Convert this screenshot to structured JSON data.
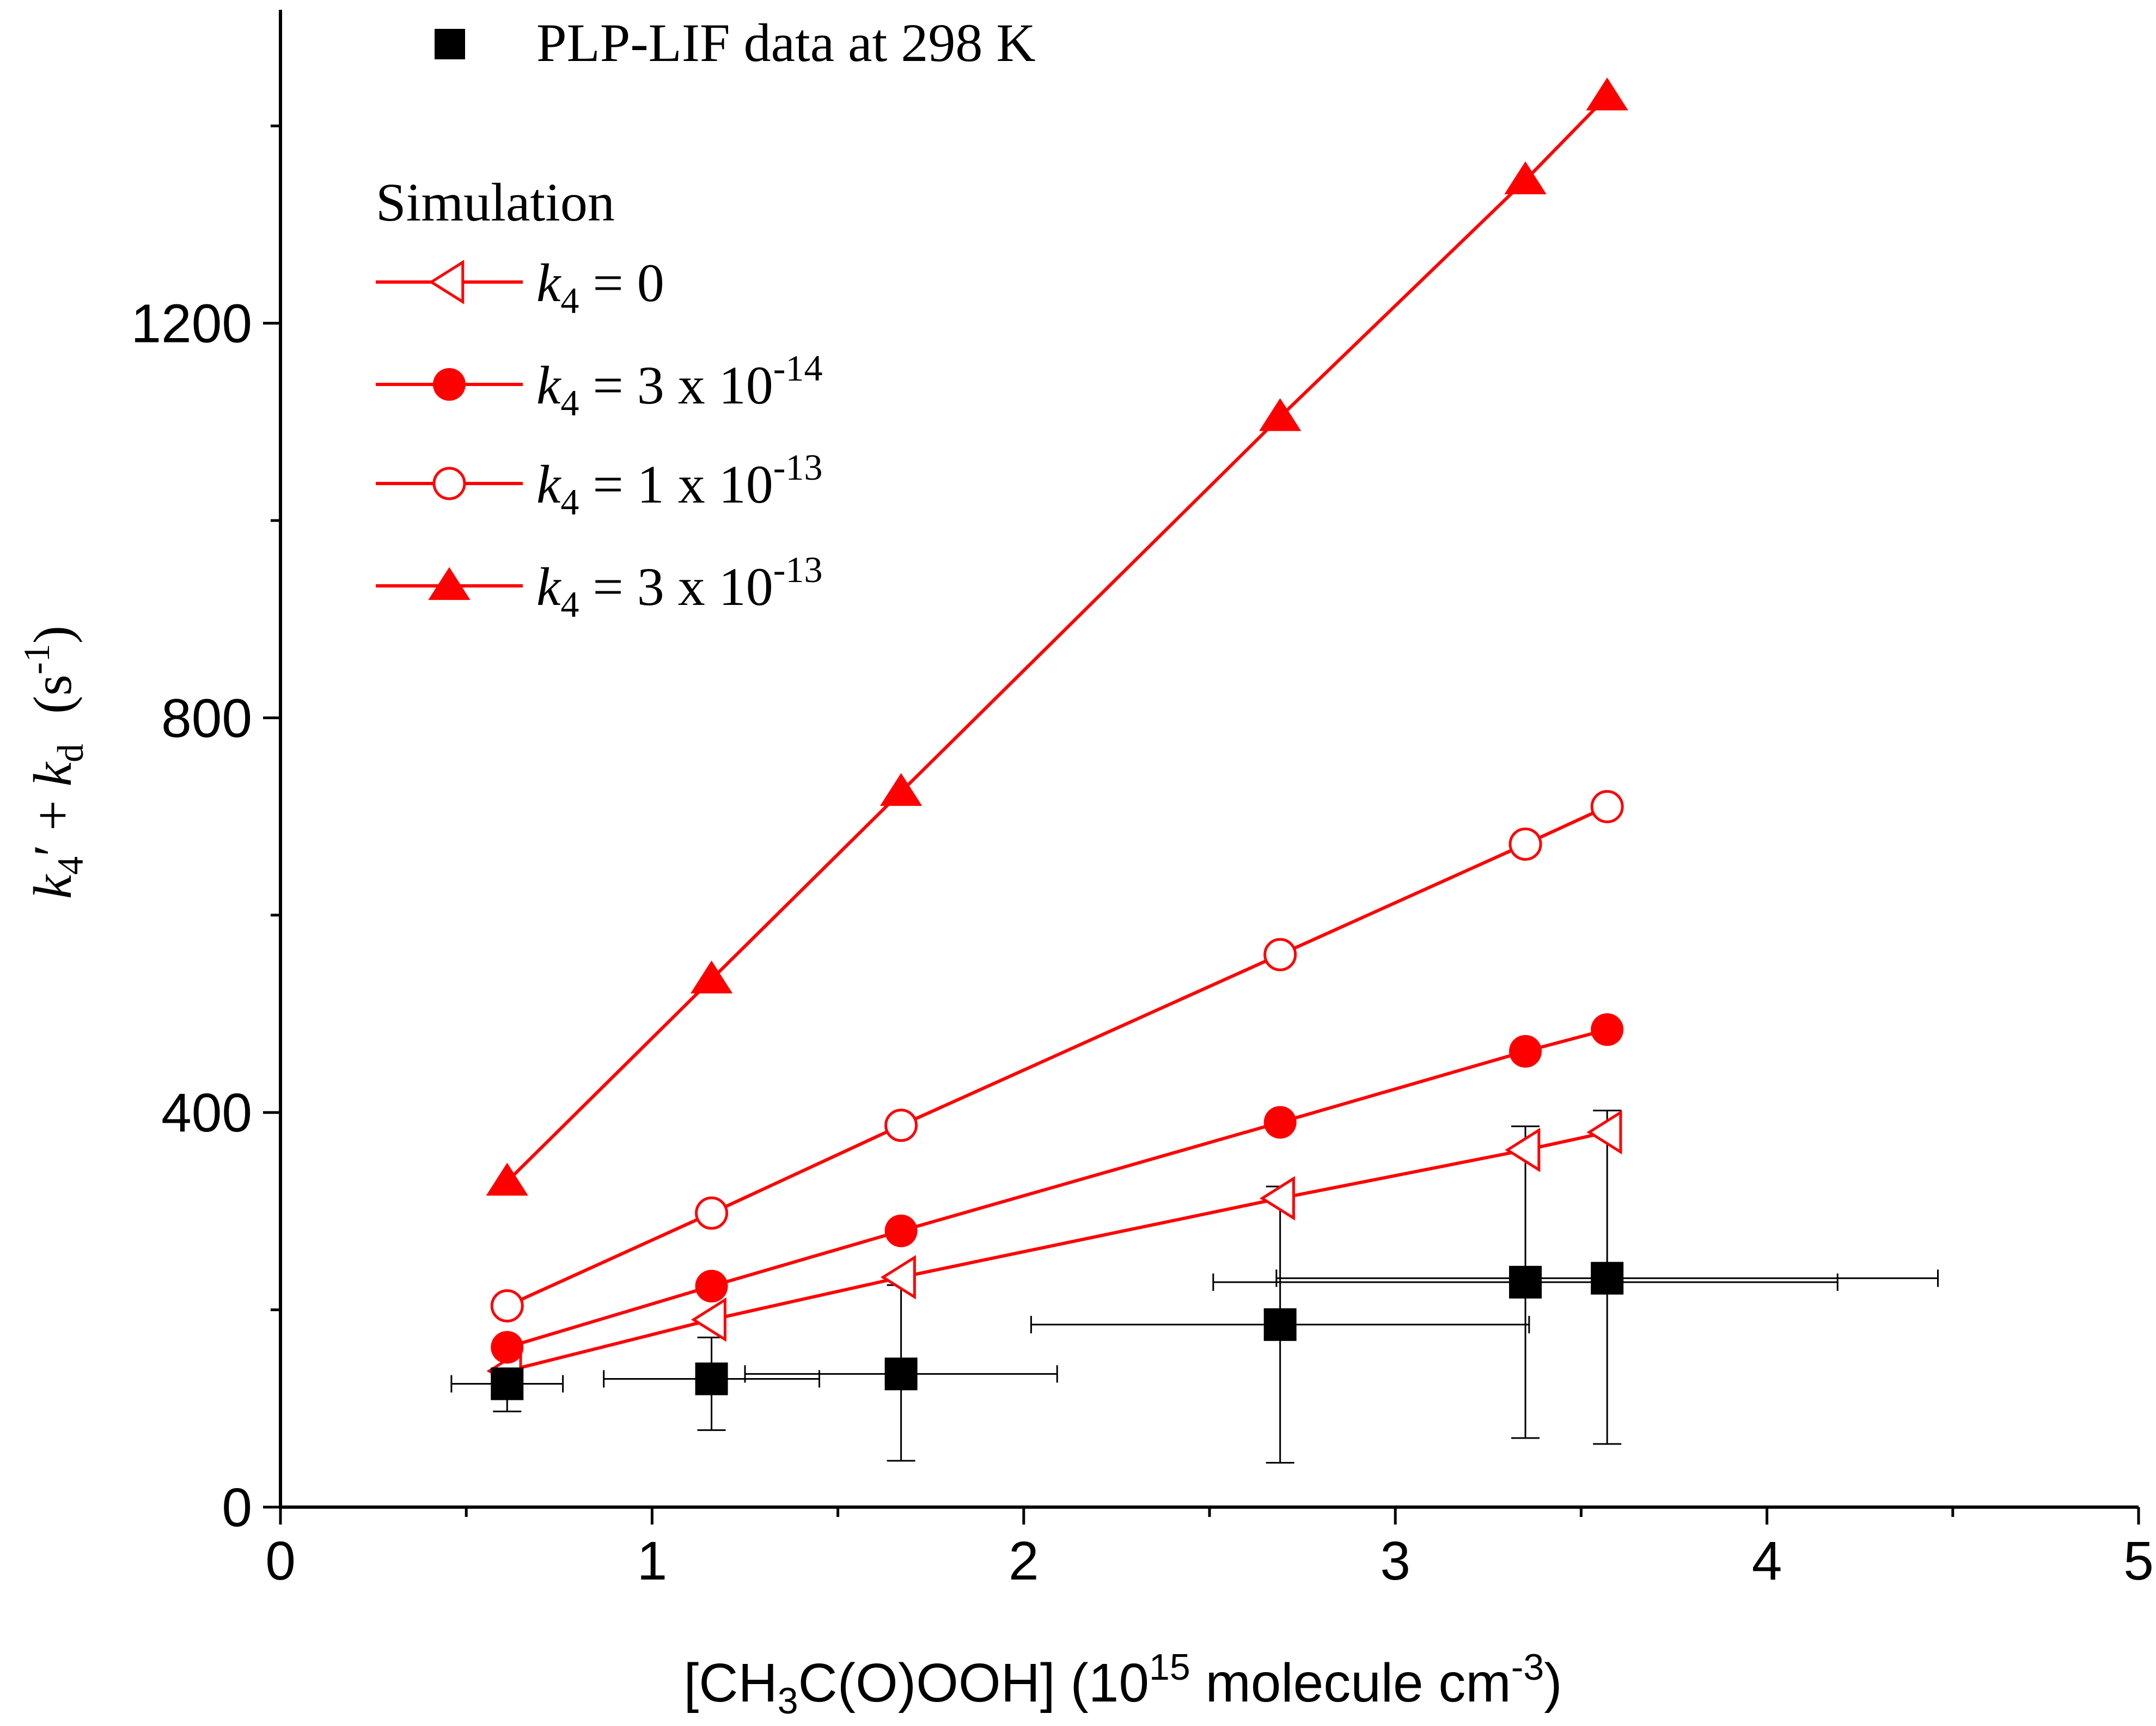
{
  "chart_data": {
    "type": "scatter",
    "x_title": {
      "pre": "[CH",
      "s1": "3",
      "mid": "C(O)OOH] (10",
      "s2": "15",
      "post": " molecule cm",
      "s3": "-3",
      "end": ")"
    },
    "y_title": {
      "k": "k",
      "s1": "4",
      "prime": "′ + ",
      "k2": "k",
      "s2": "d",
      "unit": "(s",
      "s3": "-1",
      "end": ")"
    },
    "xlim": [
      0,
      5
    ],
    "ylim": [
      0,
      1500
    ],
    "x_ticks": [
      0,
      1,
      2,
      3,
      4,
      5
    ],
    "y_ticks": [
      0,
      400,
      800,
      1200
    ],
    "legend_placement": "top-left",
    "legend": {
      "data_label": "PLP-LIF data at 298 K",
      "simulation_title": "Simulation",
      "k_symbol": "k",
      "k_sub": "4",
      "entries": [
        "= 0",
        "= 3 x 10",
        "= 1 x 10",
        "= 3 x 10"
      ],
      "exponents": [
        "",
        "-14",
        "-13",
        "-13"
      ]
    },
    "colors": {
      "simulation": "#ff0000",
      "data": "#000000"
    },
    "data_series": {
      "name": "PLP-LIF data at 298 K",
      "marker": "filled-square",
      "x": [
        0.61,
        1.16,
        1.67,
        2.69,
        3.35,
        3.57
      ],
      "y": [
        125,
        130,
        135,
        185,
        228,
        232
      ],
      "x_err": [
        0.15,
        0.29,
        0.42,
        0.67,
        0.84,
        0.89
      ],
      "y_err_upper": [
        8,
        42,
        90,
        140,
        158,
        170
      ],
      "y_err_lower": [
        28,
        52,
        88,
        140,
        158,
        168
      ]
    },
    "series": [
      {
        "name": "k4 = 0",
        "marker": "open-left-triangle",
        "x": [
          0.61,
          1.16,
          1.67,
          2.69,
          3.35,
          3.57
        ],
        "y": [
          138,
          190,
          233,
          313,
          362,
          380
        ]
      },
      {
        "name": "k4 = 3 x 10-14",
        "marker": "filled-circle",
        "x": [
          0.61,
          1.16,
          1.67,
          2.69,
          3.35,
          3.57
        ],
        "y": [
          162,
          224,
          280,
          390,
          462,
          484
        ]
      },
      {
        "name": "k4 = 1 x 10-13",
        "marker": "open-circle",
        "x": [
          0.61,
          1.16,
          1.67,
          2.69,
          3.35,
          3.57
        ],
        "y": [
          204,
          298,
          387,
          560,
          672,
          710
        ]
      },
      {
        "name": "k4 = 3 x 10-13",
        "marker": "filled-triangle",
        "x": [
          0.61,
          1.16,
          1.67,
          2.69,
          3.35,
          3.57
        ],
        "y": [
          330,
          535,
          725,
          1105,
          1345,
          1430
        ]
      }
    ]
  }
}
